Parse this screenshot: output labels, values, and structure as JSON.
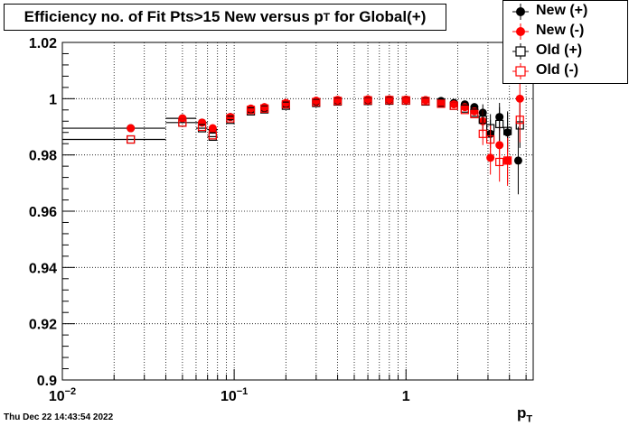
{
  "footer": {
    "datestamp": "Thu Dec 22 14:43:54 2022"
  },
  "chart_data": {
    "type": "scatter",
    "title_main": "Efficiency no. of Fit Pts>15 New versus p",
    "title_sub": "T",
    "title_tail": " for Global(+)",
    "xlabel_main": "p",
    "xlabel_sub": "T",
    "xscale": "log",
    "xlim": [
      0.01,
      5.5
    ],
    "ylim": [
      0.9,
      1.02
    ],
    "grid": true,
    "legend_position": "top-right",
    "y_ticks": [
      {
        "value": 0.9,
        "label": "0.9"
      },
      {
        "value": 0.92,
        "label": "0.92"
      },
      {
        "value": 0.94,
        "label": "0.94"
      },
      {
        "value": 0.96,
        "label": "0.96"
      },
      {
        "value": 0.98,
        "label": "0.98"
      },
      {
        "value": 1.0,
        "label": "1"
      },
      {
        "value": 1.02,
        "label": "1.02"
      }
    ],
    "x_major_ticks": [
      {
        "value": 0.01,
        "base": "10",
        "exp": "−2"
      },
      {
        "value": 0.1,
        "base": "10",
        "exp": "−1"
      },
      {
        "value": 1,
        "base": "1",
        "exp": ""
      }
    ],
    "series": [
      {
        "name": "New (+)",
        "color": "#000000",
        "marker": "filled-circle",
        "points": [
          {
            "x": 0.025,
            "y": 0.9895,
            "xl": 0.01,
            "xh": 0.04
          },
          {
            "x": 0.05,
            "y": 0.993,
            "xl": 0.04,
            "xh": 0.06
          },
          {
            "x": 0.065,
            "y": 0.9915,
            "xl": 0.06,
            "xh": 0.07
          },
          {
            "x": 0.075,
            "y": 0.989,
            "xl": 0.07,
            "xh": 0.08
          },
          {
            "x": 0.095,
            "y": 0.9935,
            "xl": 0.09,
            "xh": 0.1
          },
          {
            "x": 0.125,
            "y": 0.996,
            "xl": 0.12,
            "xh": 0.13
          },
          {
            "x": 0.15,
            "y": 0.9965
          },
          {
            "x": 0.2,
            "y": 0.998
          },
          {
            "x": 0.3,
            "y": 0.999
          },
          {
            "x": 0.4,
            "y": 0.9993
          },
          {
            "x": 0.6,
            "y": 0.9995
          },
          {
            "x": 0.8,
            "y": 0.9996
          },
          {
            "x": 1.0,
            "y": 0.9996
          },
          {
            "x": 1.3,
            "y": 0.9995
          },
          {
            "x": 1.6,
            "y": 0.9992
          },
          {
            "x": 1.9,
            "y": 0.9985
          },
          {
            "x": 2.2,
            "y": 0.998
          },
          {
            "x": 2.5,
            "y": 0.997
          },
          {
            "x": 2.8,
            "y": 0.995,
            "yerr": 0.003
          },
          {
            "x": 3.1,
            "y": 0.9875,
            "yerr": 0.005
          },
          {
            "x": 3.5,
            "y": 0.9935,
            "yerr": 0.005
          },
          {
            "x": 3.9,
            "y": 0.988,
            "yerr": 0.007
          },
          {
            "x": 4.5,
            "y": 0.978,
            "yerr": 0.012
          }
        ]
      },
      {
        "name": "New (-)",
        "color": "#ff0000",
        "marker": "filled-circle",
        "points": [
          {
            "x": 0.025,
            "y": 0.9895
          },
          {
            "x": 0.05,
            "y": 0.993
          },
          {
            "x": 0.065,
            "y": 0.9915
          },
          {
            "x": 0.075,
            "y": 0.9895
          },
          {
            "x": 0.095,
            "y": 0.9935
          },
          {
            "x": 0.125,
            "y": 0.9965
          },
          {
            "x": 0.15,
            "y": 0.997
          },
          {
            "x": 0.2,
            "y": 0.9985
          },
          {
            "x": 0.3,
            "y": 0.9993
          },
          {
            "x": 0.4,
            "y": 0.9996
          },
          {
            "x": 0.6,
            "y": 0.9998
          },
          {
            "x": 0.8,
            "y": 0.9998
          },
          {
            "x": 1.0,
            "y": 0.9997
          },
          {
            "x": 1.3,
            "y": 0.9995
          },
          {
            "x": 1.6,
            "y": 0.9985
          },
          {
            "x": 1.9,
            "y": 0.998
          },
          {
            "x": 2.2,
            "y": 0.997
          },
          {
            "x": 2.5,
            "y": 0.9955
          },
          {
            "x": 2.8,
            "y": 0.992,
            "yerr": 0.004
          },
          {
            "x": 3.1,
            "y": 0.979,
            "yerr": 0.006
          },
          {
            "x": 3.5,
            "y": 0.9835,
            "yerr": 0.007
          },
          {
            "x": 3.9,
            "y": 0.978,
            "yerr": 0.009
          },
          {
            "x": 4.6,
            "y": 1.0,
            "yerr": 0.008
          }
        ]
      },
      {
        "name": "Old (+)",
        "color": "#000000",
        "marker": "open-square",
        "points": [
          {
            "x": 0.025,
            "y": 0.9855,
            "xl": 0.01,
            "xh": 0.04
          },
          {
            "x": 0.05,
            "y": 0.9915,
            "xl": 0.04,
            "xh": 0.06
          },
          {
            "x": 0.065,
            "y": 0.9895,
            "xl": 0.06,
            "xh": 0.07
          },
          {
            "x": 0.075,
            "y": 0.9865,
            "xl": 0.07,
            "xh": 0.08
          },
          {
            "x": 0.095,
            "y": 0.9925,
            "xl": 0.09,
            "xh": 0.1
          },
          {
            "x": 0.125,
            "y": 0.9955
          },
          {
            "x": 0.15,
            "y": 0.9962
          },
          {
            "x": 0.2,
            "y": 0.9975
          },
          {
            "x": 0.3,
            "y": 0.9985
          },
          {
            "x": 0.4,
            "y": 0.999
          },
          {
            "x": 0.6,
            "y": 0.9992
          },
          {
            "x": 0.8,
            "y": 0.9993
          },
          {
            "x": 1.0,
            "y": 0.9993
          },
          {
            "x": 1.3,
            "y": 0.999
          },
          {
            "x": 1.6,
            "y": 0.9985
          },
          {
            "x": 1.9,
            "y": 0.9975
          },
          {
            "x": 2.2,
            "y": 0.9965
          },
          {
            "x": 2.5,
            "y": 0.995
          },
          {
            "x": 2.8,
            "y": 0.9925,
            "yerr": 0.004
          },
          {
            "x": 3.1,
            "y": 0.9895,
            "yerr": 0.005
          },
          {
            "x": 3.5,
            "y": 0.991,
            "yerr": 0.006
          },
          {
            "x": 3.9,
            "y": 0.9885,
            "yerr": 0.007
          },
          {
            "x": 4.6,
            "y": 0.9905,
            "yerr": 0.008
          }
        ]
      },
      {
        "name": "Old (-)",
        "color": "#ff0000",
        "marker": "open-square",
        "points": [
          {
            "x": 0.025,
            "y": 0.9855
          },
          {
            "x": 0.05,
            "y": 0.9915
          },
          {
            "x": 0.065,
            "y": 0.99
          },
          {
            "x": 0.075,
            "y": 0.987
          },
          {
            "x": 0.095,
            "y": 0.993
          },
          {
            "x": 0.125,
            "y": 0.996
          },
          {
            "x": 0.15,
            "y": 0.9965
          },
          {
            "x": 0.2,
            "y": 0.998
          },
          {
            "x": 0.3,
            "y": 0.9988
          },
          {
            "x": 0.4,
            "y": 0.9992
          },
          {
            "x": 0.6,
            "y": 0.9994
          },
          {
            "x": 0.8,
            "y": 0.9995
          },
          {
            "x": 1.0,
            "y": 0.9994
          },
          {
            "x": 1.3,
            "y": 0.9992
          },
          {
            "x": 1.6,
            "y": 0.9982
          },
          {
            "x": 1.9,
            "y": 0.9975
          },
          {
            "x": 2.2,
            "y": 0.996
          },
          {
            "x": 2.5,
            "y": 0.9945
          },
          {
            "x": 2.8,
            "y": 0.9875,
            "yerr": 0.004
          },
          {
            "x": 3.1,
            "y": 0.9855,
            "yerr": 0.005
          },
          {
            "x": 3.5,
            "y": 0.9775,
            "yerr": 0.007
          },
          {
            "x": 3.9,
            "y": 0.978,
            "yerr": 0.008
          },
          {
            "x": 4.6,
            "y": 0.9925,
            "yerr": 0.008
          }
        ]
      }
    ]
  }
}
